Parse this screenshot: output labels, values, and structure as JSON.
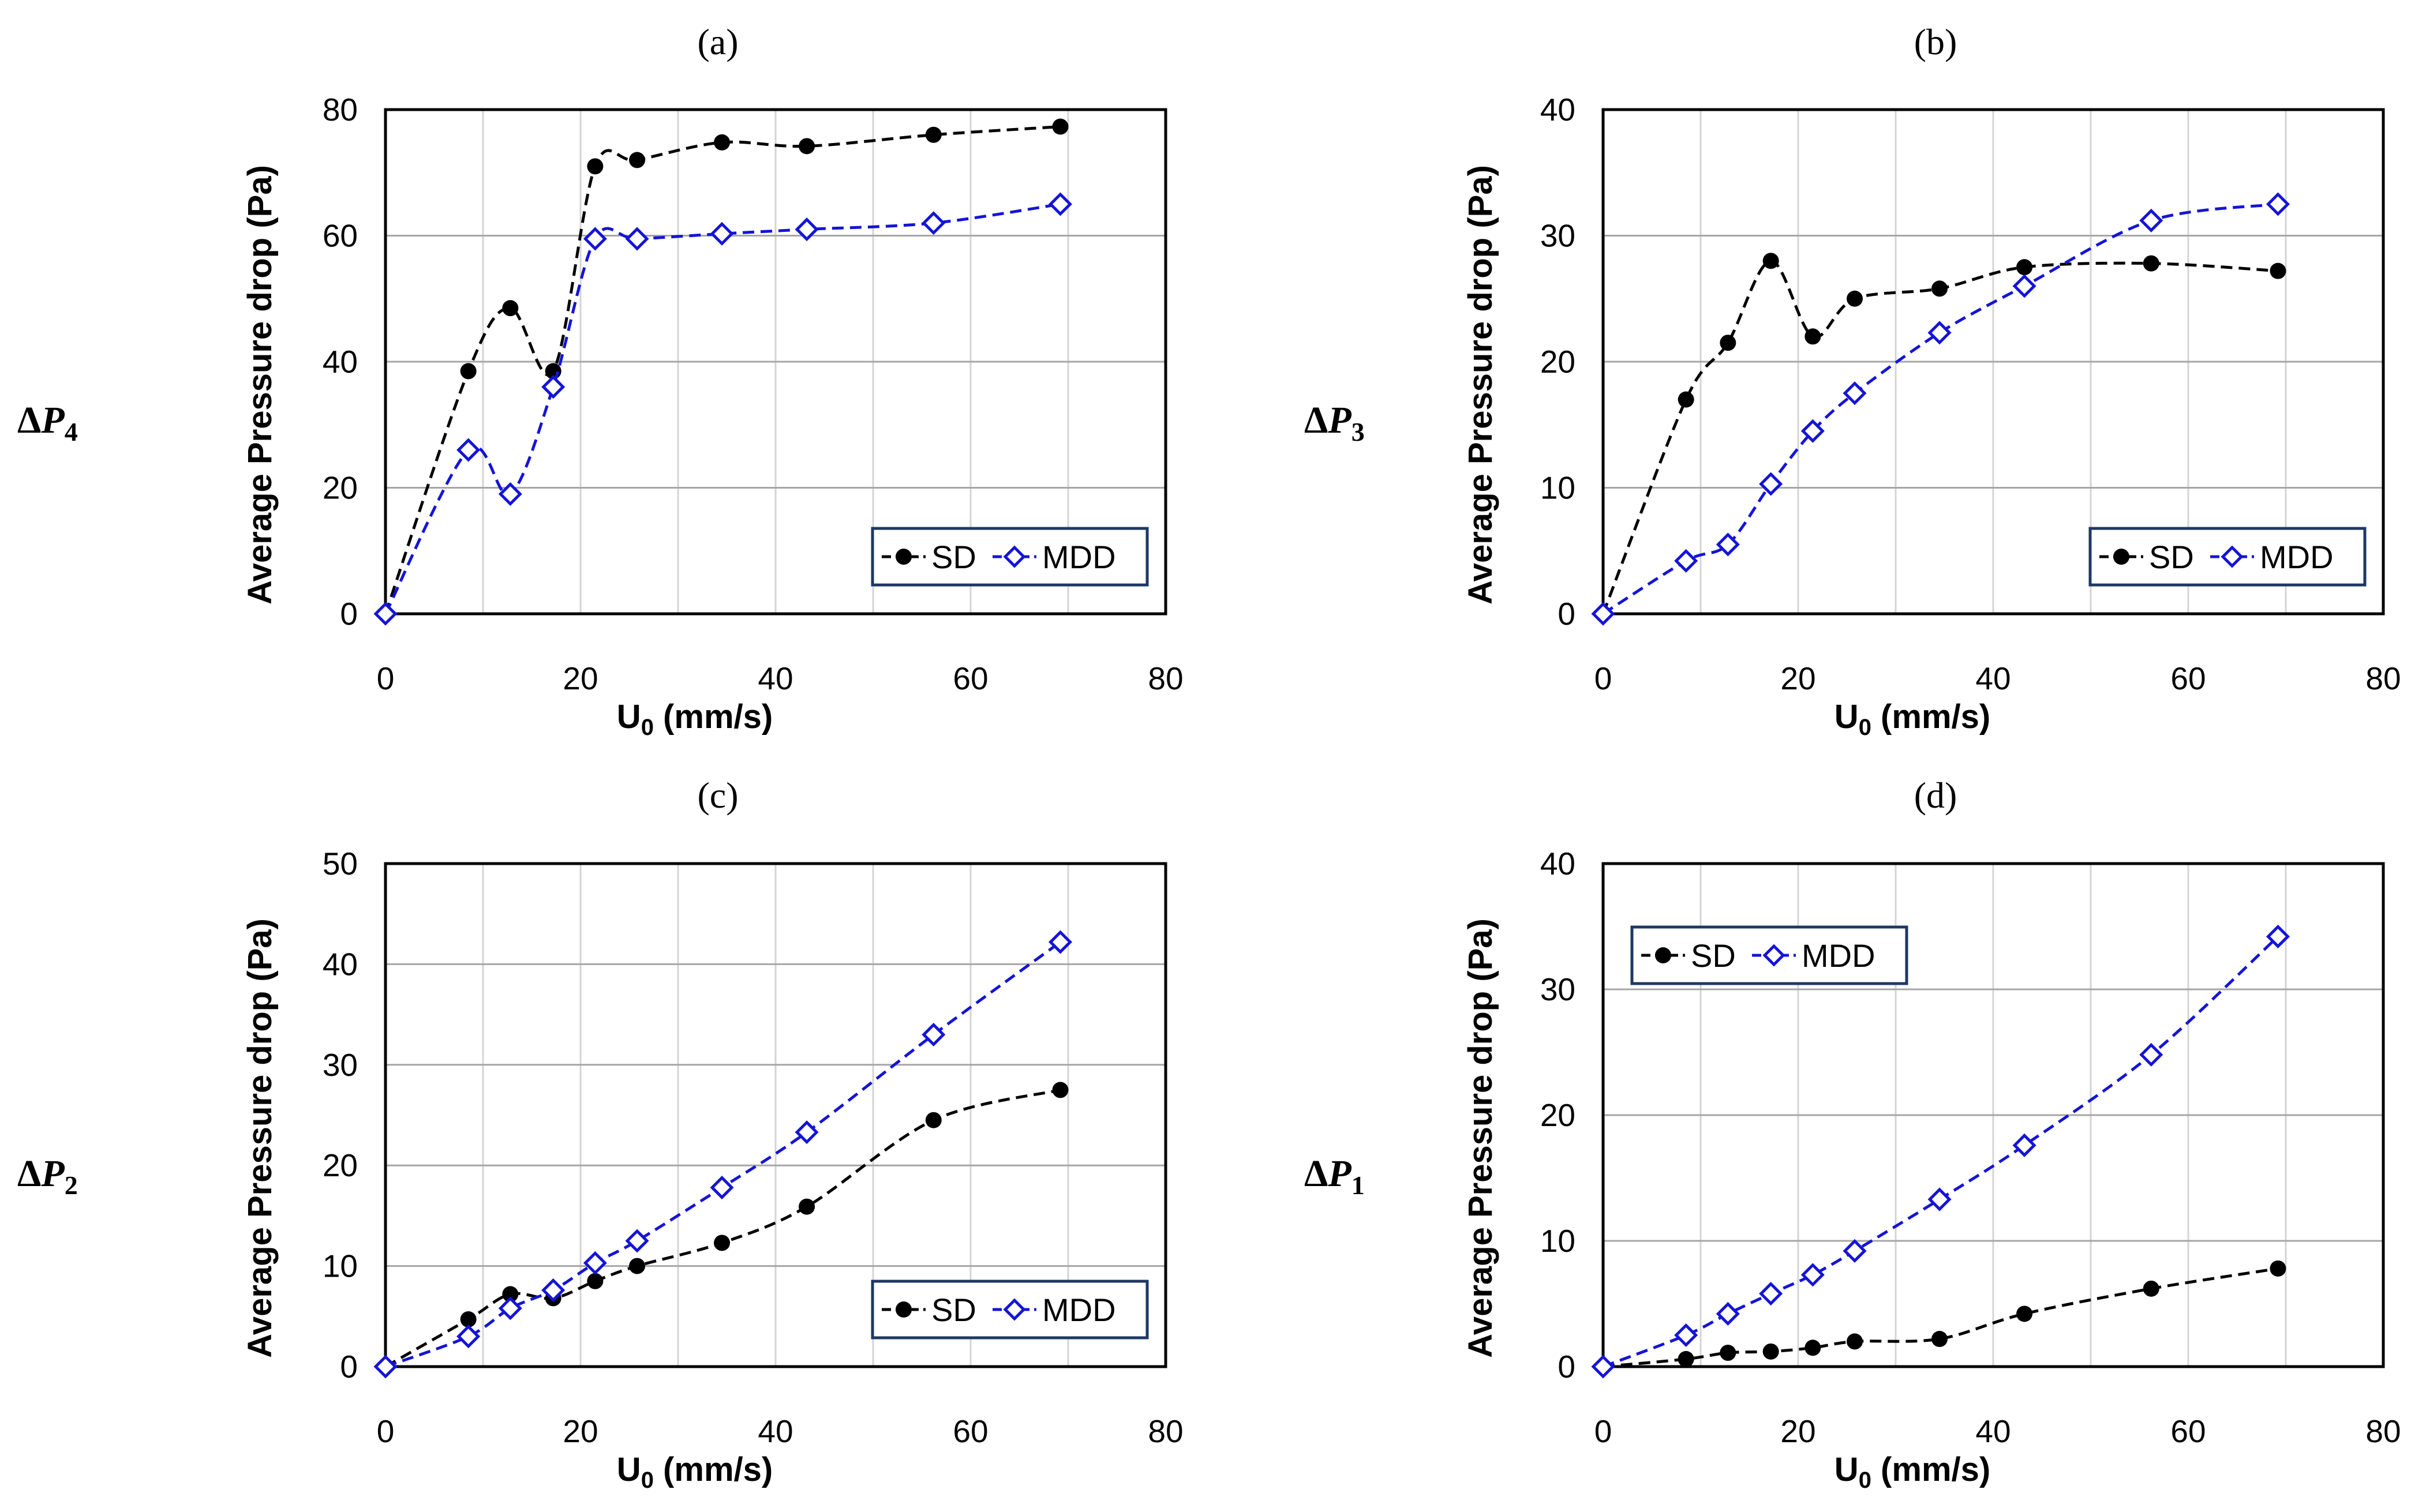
{
  "colors": {
    "SD": "#000000",
    "MDD": "#1414d8",
    "grid": "#d4d4d4",
    "legend_border": "#1f3864"
  },
  "chart_data": [
    {
      "type": "line",
      "panel_label": "(a)",
      "side_label": {
        "delta": "Δ",
        "var": "P",
        "sub": "4"
      },
      "title": "",
      "xlabel": {
        "main": "U",
        "sub": "0",
        "rest": " (mm/s)"
      },
      "ylabel": "Average Pressure drop (Pa)",
      "xlim": [
        0,
        80
      ],
      "ylim": [
        0,
        80
      ],
      "xticks": [
        0,
        20,
        40,
        60,
        80
      ],
      "yticks": [
        0,
        20,
        40,
        60,
        80
      ],
      "xtick_labels": [
        "0",
        "20",
        "40",
        "60",
        "80"
      ],
      "ytick_labels": [
        "0",
        "20",
        "40",
        "60",
        "80"
      ],
      "grid": true,
      "legend_position": "bottom-right",
      "series": [
        {
          "name": "SD",
          "marker": "filled-circle",
          "x": [
            0,
            8.5,
            12.8,
            17.2,
            21.5,
            25.8,
            34.5,
            43.2,
            56.2,
            69.2
          ],
          "y": [
            0,
            38.5,
            48.5,
            38.5,
            71,
            72,
            74.8,
            74.2,
            76,
            77.3
          ]
        },
        {
          "name": "MDD",
          "marker": "open-diamond",
          "x": [
            0,
            8.5,
            12.8,
            17.2,
            21.5,
            25.8,
            34.5,
            43.2,
            56.2,
            69.2
          ],
          "y": [
            0,
            26,
            19,
            36,
            59.5,
            59.5,
            60.3,
            61,
            62,
            65
          ]
        }
      ]
    },
    {
      "type": "line",
      "panel_label": "(b)",
      "side_label": {
        "delta": "Δ",
        "var": "P",
        "sub": "3"
      },
      "title": "",
      "xlabel": {
        "main": "U",
        "sub": "0",
        "rest": " (mm/s)"
      },
      "ylabel": "Average Pressure drop (Pa)",
      "xlim": [
        0,
        80
      ],
      "ylim": [
        0,
        40
      ],
      "xticks": [
        0,
        20,
        40,
        60,
        80
      ],
      "yticks": [
        0,
        10,
        20,
        30,
        40
      ],
      "xtick_labels": [
        "0",
        "20",
        "40",
        "60",
        "80"
      ],
      "ytick_labels": [
        "0",
        "10",
        "20",
        "30",
        "40"
      ],
      "grid": true,
      "legend_position": "bottom-right",
      "series": [
        {
          "name": "SD",
          "marker": "filled-circle",
          "x": [
            0,
            8.5,
            12.8,
            17.2,
            21.5,
            25.8,
            34.5,
            43.2,
            56.2,
            69.2
          ],
          "y": [
            0,
            17,
            21.5,
            28,
            22,
            25,
            25.8,
            27.5,
            27.8,
            27.2
          ]
        },
        {
          "name": "MDD",
          "marker": "open-diamond",
          "x": [
            0,
            8.5,
            12.8,
            17.2,
            21.5,
            25.8,
            34.5,
            43.2,
            56.2,
            69.2
          ],
          "y": [
            0,
            4.2,
            5.5,
            10.3,
            14.5,
            17.5,
            22.3,
            26,
            31.2,
            32.5
          ]
        }
      ]
    },
    {
      "type": "line",
      "panel_label": "(c)",
      "side_label": {
        "delta": "Δ",
        "var": "P",
        "sub": "2"
      },
      "title": "",
      "xlabel": {
        "main": "U",
        "sub": "0",
        "rest": " (mm/s)"
      },
      "ylabel": "Average Pressure drop (Pa)",
      "xlim": [
        0,
        80
      ],
      "ylim": [
        0,
        50
      ],
      "xticks": [
        0,
        20,
        40,
        60,
        80
      ],
      "yticks": [
        0,
        10,
        20,
        30,
        40,
        50
      ],
      "xtick_labels": [
        "0",
        "20",
        "40",
        "60",
        "80"
      ],
      "ytick_labels": [
        "0",
        "10",
        "20",
        "30",
        "40",
        "50"
      ],
      "grid": true,
      "legend_position": "bottom-right",
      "series": [
        {
          "name": "SD",
          "marker": "filled-circle",
          "x": [
            0,
            8.5,
            12.8,
            17.2,
            21.5,
            25.8,
            34.5,
            43.2,
            56.2,
            69.2
          ],
          "y": [
            0,
            4.7,
            7.2,
            6.8,
            8.5,
            10,
            12.3,
            15.9,
            24.5,
            27.5
          ]
        },
        {
          "name": "MDD",
          "marker": "open-diamond",
          "x": [
            0,
            8.5,
            12.8,
            17.2,
            21.5,
            25.8,
            34.5,
            43.2,
            56.2,
            69.2
          ],
          "y": [
            0,
            3,
            5.8,
            7.6,
            10.3,
            12.5,
            17.8,
            23.3,
            33,
            42.2
          ]
        }
      ]
    },
    {
      "type": "line",
      "panel_label": "(d)",
      "side_label": {
        "delta": "Δ",
        "var": "P",
        "sub": "1"
      },
      "title": "",
      "xlabel": {
        "main": "U",
        "sub": "0",
        "rest": " (mm/s)"
      },
      "ylabel": "Average Pressure drop (Pa)",
      "xlim": [
        0,
        80
      ],
      "ylim": [
        0,
        40
      ],
      "xticks": [
        0,
        20,
        40,
        60,
        80
      ],
      "yticks": [
        0,
        10,
        20,
        30,
        40
      ],
      "xtick_labels": [
        "0",
        "20",
        "40",
        "60",
        "80"
      ],
      "ytick_labels": [
        "0",
        "10",
        "20",
        "30",
        "40"
      ],
      "grid": true,
      "legend_position": "top-left",
      "series": [
        {
          "name": "SD",
          "marker": "filled-circle",
          "x": [
            0,
            8.5,
            12.8,
            17.2,
            21.5,
            25.8,
            34.5,
            43.2,
            56.2,
            69.2
          ],
          "y": [
            0,
            0.6,
            1.1,
            1.2,
            1.5,
            2,
            2.2,
            4.2,
            6.2,
            7.8
          ]
        },
        {
          "name": "MDD",
          "marker": "open-diamond",
          "x": [
            0,
            8.5,
            12.8,
            17.2,
            21.5,
            25.8,
            34.5,
            43.2,
            56.2,
            69.2
          ],
          "y": [
            0,
            2.5,
            4.2,
            5.8,
            7.3,
            9.2,
            13.3,
            17.6,
            24.8,
            34.2
          ]
        }
      ]
    }
  ]
}
